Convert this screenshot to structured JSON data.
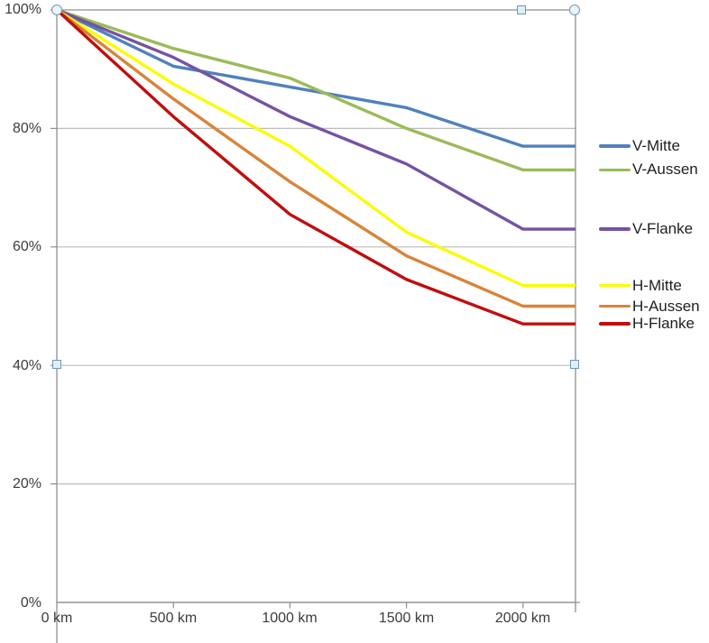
{
  "chart_data": {
    "type": "line",
    "title": "",
    "categories": [
      "0 km",
      "500 km",
      "1000 km",
      "1500 km",
      "2000 km"
    ],
    "y_axis": {
      "tick_labels": [
        "100%",
        "80%",
        "60%",
        "40%",
        "20%",
        "0%"
      ],
      "min": 0,
      "max": 100,
      "unit": "%"
    },
    "grid": true,
    "legend_position": "right, each label vertically aligned with its line end",
    "lines_extend_flat_to_right_edge": true,
    "series": [
      {
        "name": "V-Mitte",
        "color": "#4F81BD",
        "values": [
          100,
          90.5,
          87,
          83.5,
          77
        ]
      },
      {
        "name": "V-Aussen",
        "color": "#9BBB59",
        "values": [
          100,
          93.5,
          88.5,
          80,
          73
        ]
      },
      {
        "name": "V-Flanke",
        "color": "#7552A3",
        "values": [
          100,
          92,
          82,
          74,
          63
        ]
      },
      {
        "name": "H-Mitte",
        "color": "#FCFC00",
        "values": [
          100,
          87.5,
          77,
          62.5,
          53.5
        ]
      },
      {
        "name": "H-Aussen",
        "color": "#D8843A",
        "values": [
          100,
          85,
          71,
          58.5,
          50
        ]
      },
      {
        "name": "H-Flanke",
        "color": "#C00E0E",
        "values": [
          100,
          82,
          65.5,
          54.5,
          47
        ]
      }
    ]
  },
  "ui": {
    "selection_handles": [
      "handle-circle-top-left",
      "handle-square-top",
      "handle-circle-top-right",
      "handle-square-left-mid",
      "handle-square-right-mid"
    ],
    "colors": {
      "gridline": "#bcbcbc",
      "axis": "#8f8f8f",
      "axis_text": "#3c3c3c",
      "legend_text": "#1f1f1f",
      "handle_fill": "#ddeff7",
      "handle_border": "#7499ae"
    }
  }
}
